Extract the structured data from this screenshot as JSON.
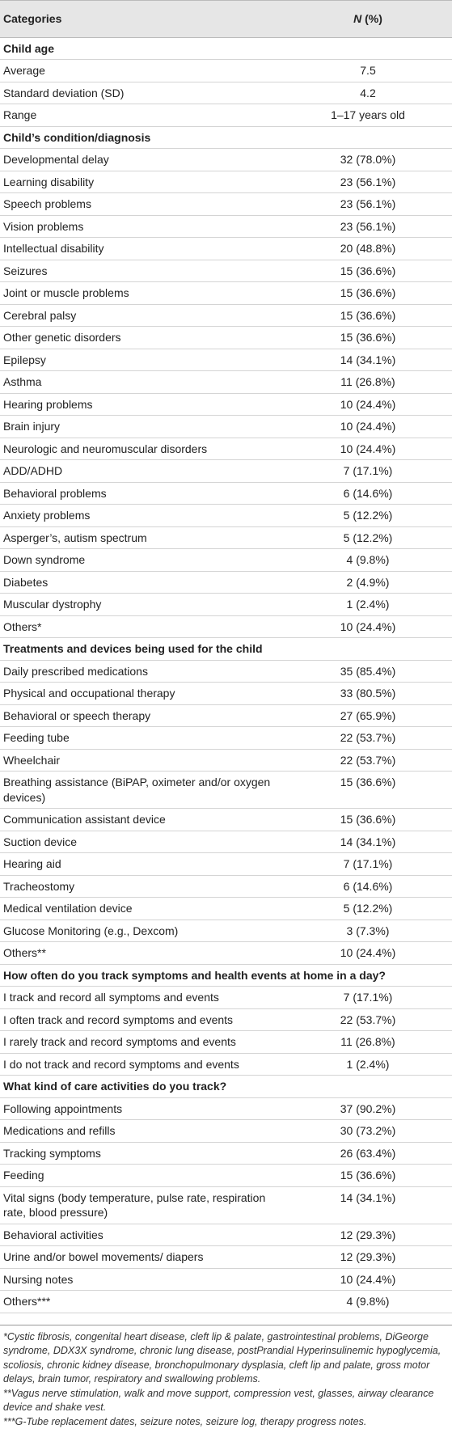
{
  "table": {
    "header": {
      "categories": "Categories",
      "n_label": "N",
      "pct_label": "(%)"
    },
    "sections": [
      {
        "title": "Child age",
        "rows": [
          [
            "Average",
            "7.5"
          ],
          [
            "Standard deviation (SD)",
            "4.2"
          ],
          [
            "Range",
            "1–17 years old"
          ]
        ]
      },
      {
        "title": "Child’s condition/diagnosis",
        "rows": [
          [
            "Developmental delay",
            "32 (78.0%)"
          ],
          [
            "Learning disability",
            "23 (56.1%)"
          ],
          [
            "Speech problems",
            "23 (56.1%)"
          ],
          [
            "Vision problems",
            "23 (56.1%)"
          ],
          [
            "Intellectual disability",
            "20 (48.8%)"
          ],
          [
            "Seizures",
            "15 (36.6%)"
          ],
          [
            "Joint or muscle problems",
            "15 (36.6%)"
          ],
          [
            "Cerebral palsy",
            "15 (36.6%)"
          ],
          [
            "Other genetic disorders",
            "15 (36.6%)"
          ],
          [
            "Epilepsy",
            "14 (34.1%)"
          ],
          [
            "Asthma",
            "11 (26.8%)"
          ],
          [
            "Hearing problems",
            "10 (24.4%)"
          ],
          [
            "Brain injury",
            "10 (24.4%)"
          ],
          [
            "Neurologic and neuromuscular disorders",
            "10 (24.4%)"
          ],
          [
            "ADD/ADHD",
            "7 (17.1%)"
          ],
          [
            "Behavioral problems",
            "6 (14.6%)"
          ],
          [
            "Anxiety problems",
            "5 (12.2%)"
          ],
          [
            "Asperger’s, autism spectrum",
            "5 (12.2%)"
          ],
          [
            "Down syndrome",
            "4 (9.8%)"
          ],
          [
            "Diabetes",
            "2 (4.9%)"
          ],
          [
            "Muscular dystrophy",
            "1 (2.4%)"
          ],
          [
            "Others*",
            "10 (24.4%)"
          ]
        ]
      },
      {
        "title": "Treatments and devices being used for the child",
        "rows": [
          [
            "Daily prescribed medications",
            "35 (85.4%)"
          ],
          [
            "Physical and occupational therapy",
            "33 (80.5%)"
          ],
          [
            "Behavioral or speech therapy",
            "27 (65.9%)"
          ],
          [
            "Feeding tube",
            "22 (53.7%)"
          ],
          [
            "Wheelchair",
            "22 (53.7%)"
          ],
          [
            "Breathing assistance (BiPAP, oximeter and/or oxygen devices)",
            "15 (36.6%)"
          ],
          [
            "Communication assistant device",
            "15 (36.6%)"
          ],
          [
            "Suction device",
            "14 (34.1%)"
          ],
          [
            "Hearing aid",
            "7 (17.1%)"
          ],
          [
            "Tracheostomy",
            "6 (14.6%)"
          ],
          [
            "Medical ventilation device",
            "5 (12.2%)"
          ],
          [
            "Glucose Monitoring (e.g., Dexcom)",
            "3 (7.3%)"
          ],
          [
            "Others**",
            "10 (24.4%)"
          ]
        ]
      },
      {
        "title": "How often do you track symptoms and health events at home in a day?",
        "rows": [
          [
            "I track and record all symptoms and events",
            "7 (17.1%)"
          ],
          [
            "I often track and record symptoms and events",
            "22 (53.7%)"
          ],
          [
            "I rarely track and record symptoms and events",
            "11 (26.8%)"
          ],
          [
            "I do not track and record symptoms and events",
            "1 (2.4%)"
          ]
        ]
      },
      {
        "title": "What kind of care activities do you track?",
        "rows": [
          [
            "Following appointments",
            "37 (90.2%)"
          ],
          [
            "Medications and refills",
            "30 (73.2%)"
          ],
          [
            "Tracking symptoms",
            "26 (63.4%)"
          ],
          [
            "Feeding",
            "15 (36.6%)"
          ],
          [
            "Vital signs (body temperature, pulse rate, respiration rate, blood pressure)",
            "14 (34.1%)"
          ],
          [
            "Behavioral activities",
            "12 (29.3%)"
          ],
          [
            "Urine and/or bowel movements/ diapers",
            "12 (29.3%)"
          ],
          [
            "Nursing notes",
            "10 (24.4%)"
          ],
          [
            "Others***",
            "4 (9.8%)"
          ]
        ]
      }
    ]
  },
  "footnotes": [
    "*Cystic fibrosis, congenital heart disease, cleft lip & palate, gastrointestinal problems, DiGeorge syndrome, DDX3X syndrome, chronic lung disease, postPrandial Hyperinsulinemic hypoglycemia, scoliosis, chronic kidney disease, bronchopulmonary dysplasia, cleft lip and palate, gross motor delays, brain tumor, respiratory and swallowing problems.",
    "**Vagus nerve stimulation, walk and move support, compression vest, glasses, airway clearance device and shake vest.",
    "***G-Tube replacement dates, seizure notes, seizure log, therapy progress notes."
  ]
}
